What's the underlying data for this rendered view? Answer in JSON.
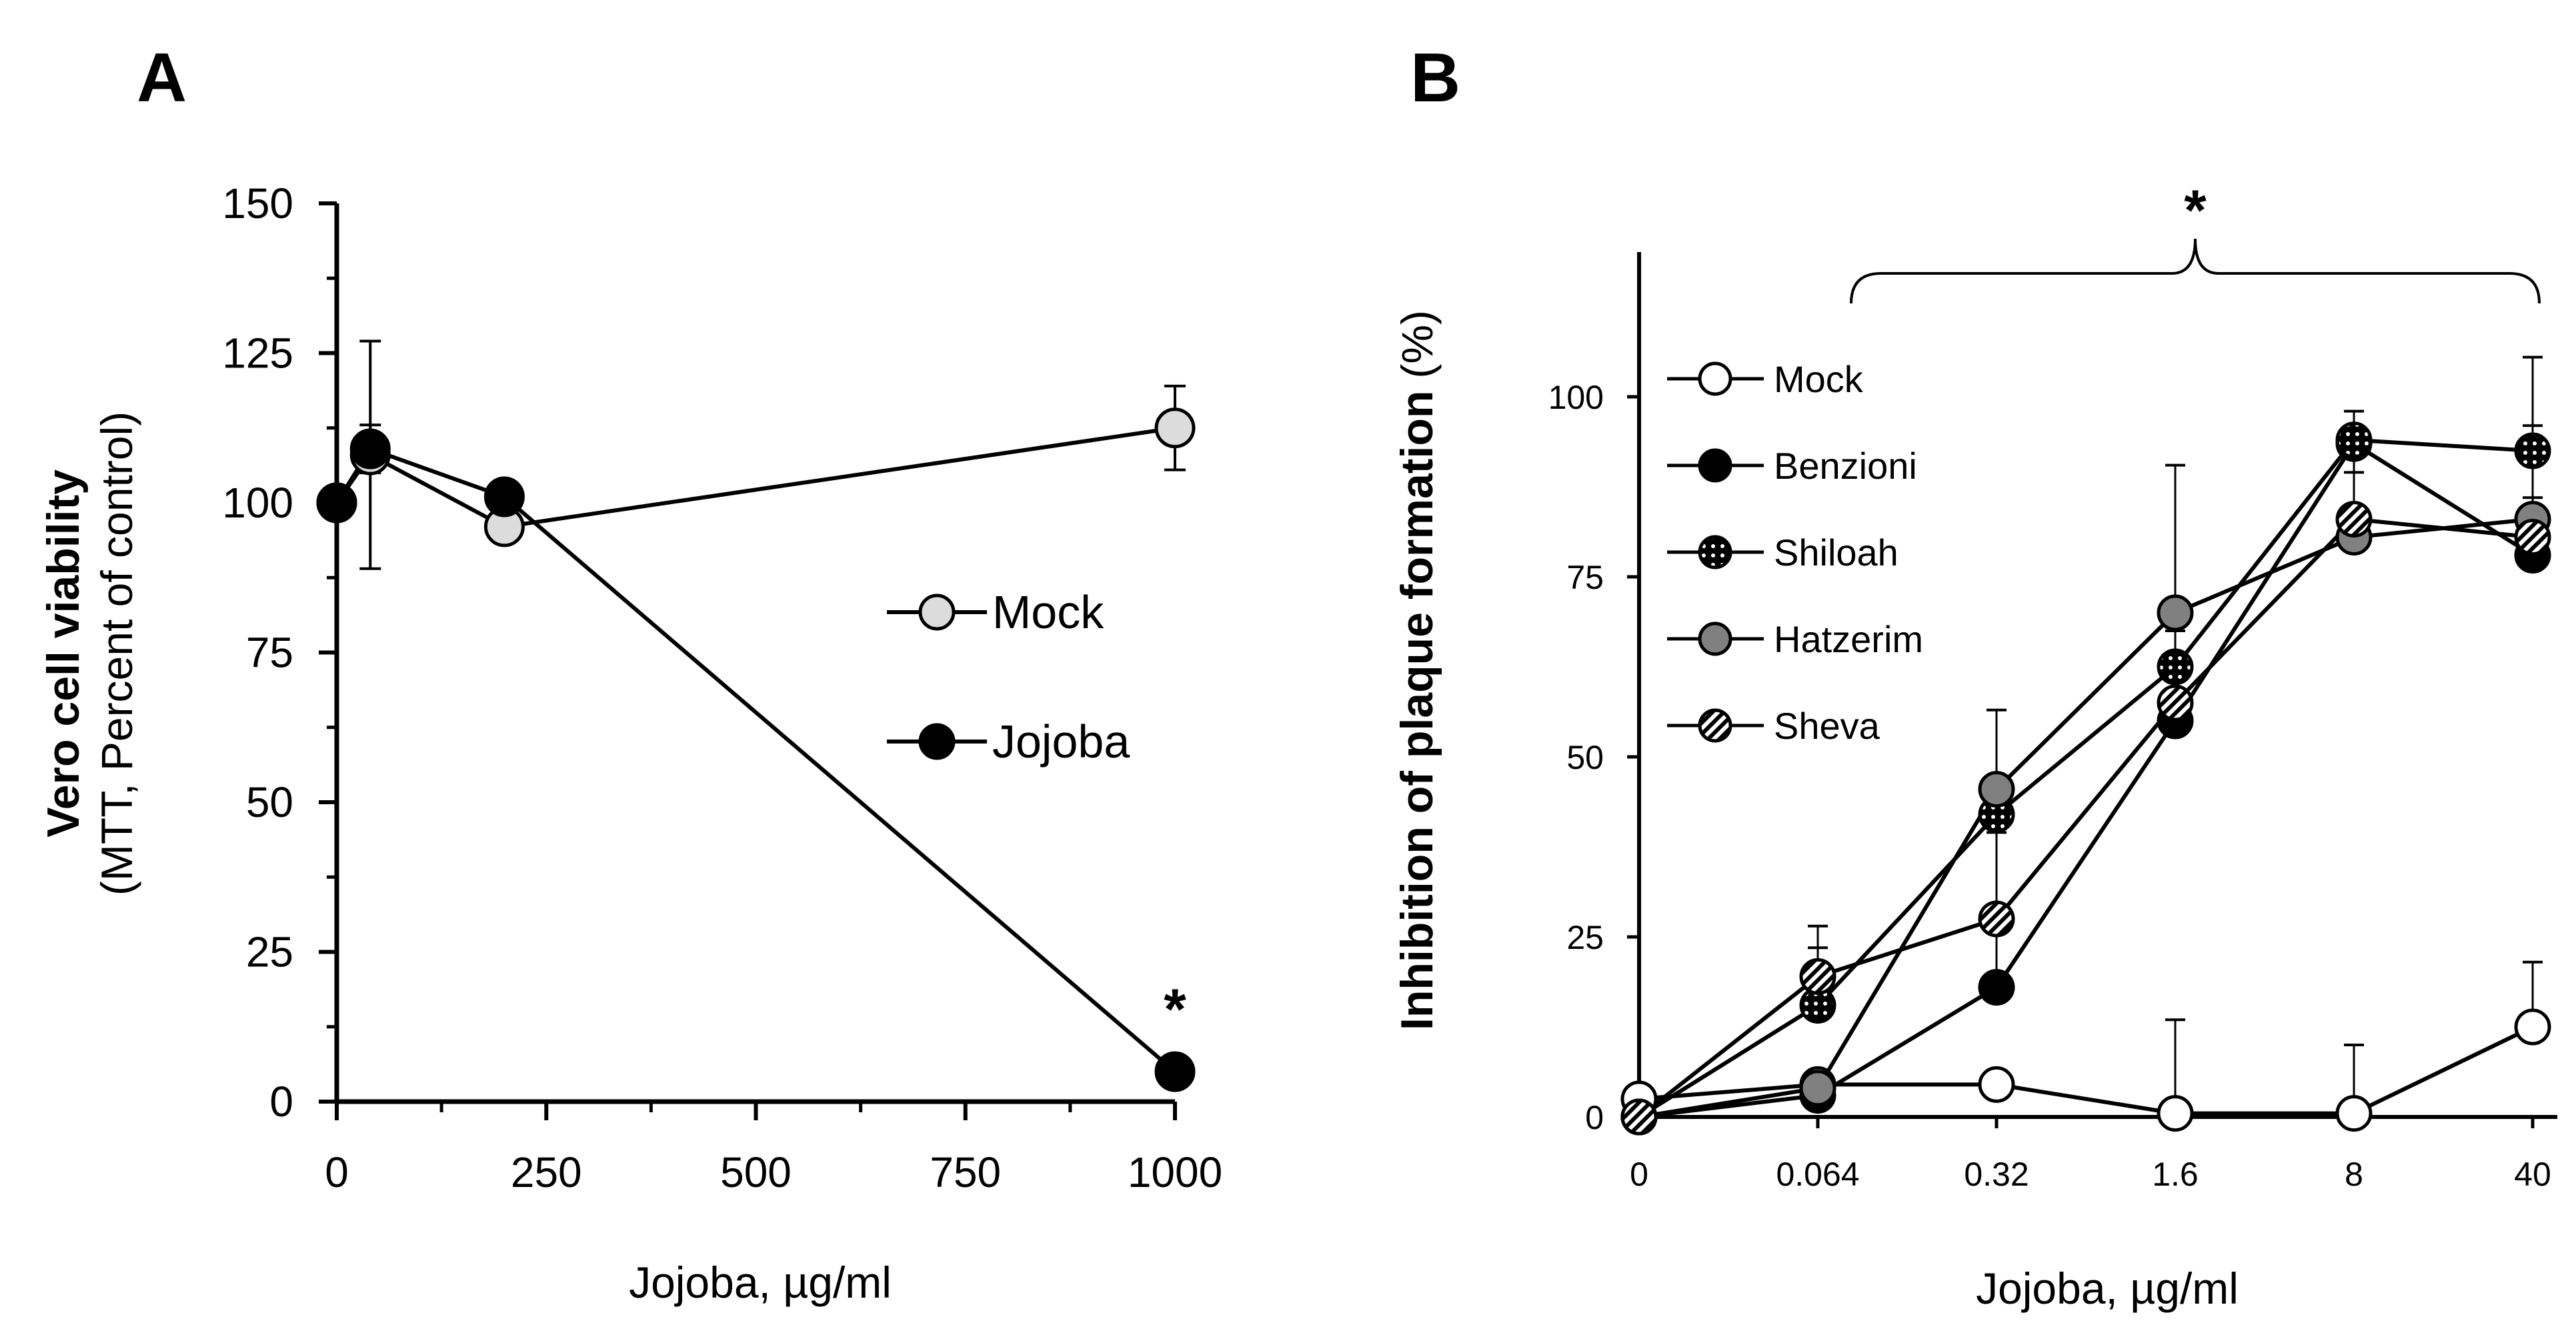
{
  "chart_data": [
    {
      "panel": "A",
      "type": "line",
      "title": "",
      "xlabel": "Jojoba, µg/ml",
      "ylabel": "Vero cell viability",
      "ylabel_sub": "(MTT, Percent of control)",
      "xlim": [
        0,
        1000
      ],
      "ylim": [
        0,
        150
      ],
      "xticks": [
        "0",
        "250",
        "500",
        "750",
        "1000"
      ],
      "yticks": [
        "0",
        "25",
        "50",
        "75",
        "100",
        "125",
        "150"
      ],
      "legend_position": "right",
      "series": [
        {
          "name": "Mock",
          "color": "#dcdcdc",
          "marker": "circle-light-gray",
          "x": [
            0,
            40,
            200,
            1000
          ],
          "y": [
            100,
            108,
            96,
            112.5
          ],
          "err": [
            0,
            19,
            0,
            7
          ]
        },
        {
          "name": "Jojoba",
          "color": "#000000",
          "marker": "circle-black",
          "x": [
            0,
            40,
            200,
            1000
          ],
          "y": [
            100,
            109,
            101,
            5
          ],
          "err": [
            0,
            4,
            0,
            0
          ]
        }
      ],
      "annotations": [
        {
          "text": "*",
          "x": 1000,
          "y": 5
        }
      ]
    },
    {
      "panel": "B",
      "type": "line",
      "title": "",
      "xlabel": "Jojoba, µg/ml",
      "ylabel": "Inhibition of plaque formation",
      "ylabel_unit": "(%)",
      "categories": [
        "0",
        "0.064",
        "0.32",
        "1.6",
        "8",
        "40"
      ],
      "ylim": [
        0,
        125
      ],
      "yticks": [
        "0",
        "25",
        "50",
        "75",
        "100"
      ],
      "legend_position": "top-left",
      "series": [
        {
          "name": "Mock",
          "color": "#ffffff",
          "marker": "circle-open",
          "values": [
            2.5,
            4.5,
            4.5,
            0.5,
            0.5,
            12.5
          ],
          "err": [
            0,
            0,
            0,
            13,
            9.5,
            9
          ]
        },
        {
          "name": "Benzioni",
          "color": "#000000",
          "marker": "circle-black",
          "values": [
            0,
            3,
            18,
            55,
            93.5,
            78
          ],
          "err": [
            0,
            0,
            9,
            9,
            0,
            8
          ]
        },
        {
          "name": "Shiloah",
          "color": "#000000",
          "marker": "circle-dotted",
          "values": [
            0,
            15.5,
            42,
            62.5,
            94,
            92.5
          ],
          "err": [
            0,
            8,
            0,
            0,
            4,
            13
          ]
        },
        {
          "name": "Hatzerim",
          "color": "#808080",
          "marker": "circle-gray",
          "values": [
            0,
            4,
            45.5,
            70,
            80.5,
            83
          ],
          "err": [
            0,
            0,
            11,
            20.5,
            9,
            13
          ]
        },
        {
          "name": "Sheva",
          "color": "#000000",
          "marker": "circle-hatched",
          "values": [
            0,
            19.5,
            27.5,
            57.5,
            83,
            80.5
          ],
          "err": [
            0,
            7,
            12,
            10,
            11,
            10
          ]
        }
      ],
      "annotations": [
        {
          "text": "*",
          "from_category": "0.064",
          "to_category": "40"
        }
      ]
    }
  ]
}
